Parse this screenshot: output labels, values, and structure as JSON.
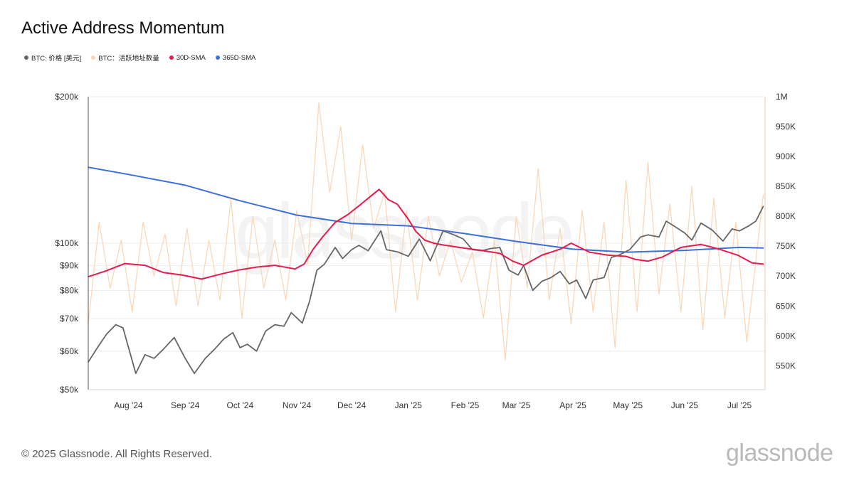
{
  "title": "Active Address Momentum",
  "legend": [
    {
      "label": "BTC: 价格 [美元]",
      "color": "#666666"
    },
    {
      "label": "BTC：活跃地址数量",
      "color": "#f9d6b6"
    },
    {
      "label": "30D-SMA",
      "color": "#e8194c"
    },
    {
      "label": "365D-SMA",
      "color": "#3d6fdc"
    }
  ],
  "footer": "© 2025 Glassnode. All Rights Reserved.",
  "brand": "glassnode",
  "watermark": "glassnode",
  "chart_data": {
    "type": "line",
    "x_range": [
      "2024-07-10",
      "2025-07-15"
    ],
    "x_ticks": [
      {
        "label": "Aug '24",
        "date": "2024-08-01"
      },
      {
        "label": "Sep '24",
        "date": "2024-09-01"
      },
      {
        "label": "Oct '24",
        "date": "2024-10-01"
      },
      {
        "label": "Nov '24",
        "date": "2024-11-01"
      },
      {
        "label": "Dec '24",
        "date": "2024-12-01"
      },
      {
        "label": "Jan '25",
        "date": "2025-01-01"
      },
      {
        "label": "Feb '25",
        "date": "2025-02-01"
      },
      {
        "label": "Mar '25",
        "date": "2025-03-01"
      },
      {
        "label": "Apr '25",
        "date": "2025-04-01"
      },
      {
        "label": "May '25",
        "date": "2025-05-01"
      },
      {
        "label": "Jun '25",
        "date": "2025-06-01"
      },
      {
        "label": "Jul '25",
        "date": "2025-07-01"
      }
    ],
    "y_left": {
      "scale": "log",
      "range": [
        50000,
        200000
      ],
      "ticks": [
        {
          "label": "$200k",
          "value": 200000
        },
        {
          "label": "$100k",
          "value": 100000
        },
        {
          "label": "$90k",
          "value": 90000
        },
        {
          "label": "$80k",
          "value": 80000
        },
        {
          "label": "$70k",
          "value": 70000
        },
        {
          "label": "$60k",
          "value": 60000
        },
        {
          "label": "$50k",
          "value": 50000
        }
      ]
    },
    "y_right": {
      "scale": "linear",
      "range": [
        510000,
        1000000
      ],
      "ticks": [
        {
          "label": "1M",
          "value": 1000000
        },
        {
          "label": "950K",
          "value": 950000
        },
        {
          "label": "900K",
          "value": 900000
        },
        {
          "label": "850K",
          "value": 850000
        },
        {
          "label": "800K",
          "value": 800000
        },
        {
          "label": "750K",
          "value": 750000
        },
        {
          "label": "700K",
          "value": 700000
        },
        {
          "label": "650K",
          "value": 650000
        },
        {
          "label": "600K",
          "value": 600000
        },
        {
          "label": "550K",
          "value": 550000
        }
      ]
    },
    "grid": true,
    "series": [
      {
        "name": "BTC: 价格 [美元]",
        "axis": "left",
        "color": "#666666",
        "x": [
          "2024-07-10",
          "2024-07-15",
          "2024-07-20",
          "2024-07-25",
          "2024-07-29",
          "2024-08-05",
          "2024-08-10",
          "2024-08-15",
          "2024-08-20",
          "2024-08-26",
          "2024-09-01",
          "2024-09-06",
          "2024-09-12",
          "2024-09-17",
          "2024-09-22",
          "2024-09-27",
          "2024-10-01",
          "2024-10-05",
          "2024-10-10",
          "2024-10-15",
          "2024-10-20",
          "2024-10-25",
          "2024-10-29",
          "2024-11-04",
          "2024-11-08",
          "2024-11-12",
          "2024-11-16",
          "2024-11-22",
          "2024-11-26",
          "2024-12-01",
          "2024-12-05",
          "2024-12-10",
          "2024-12-17",
          "2024-12-20",
          "2024-12-26",
          "2025-01-01",
          "2025-01-07",
          "2025-01-13",
          "2025-01-20",
          "2025-01-26",
          "2025-01-31",
          "2025-02-05",
          "2025-02-10",
          "2025-02-15",
          "2025-02-20",
          "2025-02-25",
          "2025-03-02",
          "2025-03-05",
          "2025-03-10",
          "2025-03-15",
          "2025-03-20",
          "2025-03-25",
          "2025-03-30",
          "2025-04-03",
          "2025-04-08",
          "2025-04-12",
          "2025-04-18",
          "2025-04-22",
          "2025-04-26",
          "2025-05-02",
          "2025-05-08",
          "2025-05-12",
          "2025-05-18",
          "2025-05-22",
          "2025-05-27",
          "2025-06-01",
          "2025-06-05",
          "2025-06-10",
          "2025-06-16",
          "2025-06-22",
          "2025-06-27",
          "2025-07-01",
          "2025-07-06",
          "2025-07-10",
          "2025-07-14"
        ],
        "y": [
          57000,
          61000,
          65000,
          68000,
          67000,
          54000,
          59000,
          58000,
          60500,
          64000,
          58000,
          54000,
          58000,
          60500,
          63500,
          65500,
          61000,
          62000,
          60000,
          66000,
          68000,
          67500,
          72000,
          68500,
          76000,
          88000,
          90500,
          98000,
          93000,
          97000,
          99000,
          96500,
          106000,
          97000,
          96000,
          94000,
          102000,
          92000,
          106000,
          104000,
          102000,
          97000,
          96500,
          97500,
          98000,
          88000,
          86000,
          90000,
          80000,
          83500,
          85000,
          87500,
          82500,
          84000,
          77000,
          84000,
          85000,
          93500,
          94500,
          97000,
          103000,
          104000,
          103000,
          111000,
          108000,
          105000,
          101500,
          110000,
          106500,
          101000,
          107000,
          106000,
          108500,
          111000,
          119000
        ]
      },
      {
        "name": "BTC：活跃地址数量",
        "axis": "right",
        "color": "#f9d6b6",
        "x": [
          "2024-07-10",
          "2024-07-16",
          "2024-07-22",
          "2024-07-28",
          "2024-08-03",
          "2024-08-09",
          "2024-08-15",
          "2024-08-21",
          "2024-08-27",
          "2024-09-02",
          "2024-09-08",
          "2024-09-14",
          "2024-09-20",
          "2024-09-26",
          "2024-10-02",
          "2024-10-08",
          "2024-10-14",
          "2024-10-20",
          "2024-10-26",
          "2024-11-01",
          "2024-11-07",
          "2024-11-13",
          "2024-11-19",
          "2024-11-25",
          "2024-12-01",
          "2024-12-07",
          "2024-12-13",
          "2024-12-19",
          "2024-12-25",
          "2024-12-31",
          "2025-01-06",
          "2025-01-12",
          "2025-01-18",
          "2025-01-24",
          "2025-01-30",
          "2025-02-05",
          "2025-02-11",
          "2025-02-17",
          "2025-02-23",
          "2025-03-01",
          "2025-03-07",
          "2025-03-13",
          "2025-03-19",
          "2025-03-25",
          "2025-03-31",
          "2025-04-06",
          "2025-04-12",
          "2025-04-18",
          "2025-04-24",
          "2025-04-30",
          "2025-05-06",
          "2025-05-12",
          "2025-05-18",
          "2025-05-24",
          "2025-05-30",
          "2025-06-05",
          "2025-06-11",
          "2025-06-17",
          "2025-06-23",
          "2025-06-29",
          "2025-07-05",
          "2025-07-14"
        ],
        "y": [
          620000,
          790000,
          680000,
          760000,
          640000,
          790000,
          700000,
          770000,
          650000,
          780000,
          650000,
          760000,
          660000,
          830000,
          630000,
          800000,
          680000,
          760000,
          660000,
          810000,
          720000,
          990000,
          840000,
          950000,
          760000,
          920000,
          780000,
          840000,
          640000,
          810000,
          660000,
          800000,
          700000,
          760000,
          690000,
          740000,
          630000,
          760000,
          560000,
          800000,
          680000,
          880000,
          660000,
          780000,
          620000,
          810000,
          640000,
          790000,
          580000,
          860000,
          640000,
          890000,
          670000,
          820000,
          640000,
          850000,
          610000,
          830000,
          630000,
          790000,
          590000,
          835000
        ]
      },
      {
        "name": "30D-SMA",
        "axis": "right",
        "color": "#e8194c",
        "x": [
          "2024-07-10",
          "2024-07-20",
          "2024-07-30",
          "2024-08-10",
          "2024-08-20",
          "2024-08-30",
          "2024-09-10",
          "2024-09-20",
          "2024-09-30",
          "2024-10-10",
          "2024-10-20",
          "2024-10-31",
          "2024-11-05",
          "2024-11-10",
          "2024-11-15",
          "2024-11-22",
          "2024-11-29",
          "2024-12-06",
          "2024-12-12",
          "2024-12-16",
          "2024-12-21",
          "2024-12-26",
          "2025-01-01",
          "2025-01-05",
          "2025-01-10",
          "2025-01-15",
          "2025-01-20",
          "2025-01-31",
          "2025-02-10",
          "2025-02-20",
          "2025-02-27",
          "2025-03-05",
          "2025-03-15",
          "2025-03-25",
          "2025-03-31",
          "2025-04-10",
          "2025-04-20",
          "2025-04-30",
          "2025-05-05",
          "2025-05-12",
          "2025-05-20",
          "2025-05-30",
          "2025-06-10",
          "2025-06-20",
          "2025-06-30",
          "2025-07-08",
          "2025-07-14"
        ],
        "y": [
          699000,
          709000,
          721000,
          718000,
          706000,
          702000,
          695000,
          703000,
          710000,
          715000,
          718000,
          712000,
          720000,
          745000,
          765000,
          790000,
          803000,
          820000,
          835000,
          845000,
          828000,
          820000,
          795000,
          775000,
          760000,
          755000,
          752000,
          747000,
          743000,
          738000,
          725000,
          718000,
          735000,
          745000,
          755000,
          740000,
          735000,
          733000,
          728000,
          725000,
          732000,
          748000,
          753000,
          745000,
          735000,
          722000,
          720000
        ]
      },
      {
        "name": "365D-SMA",
        "axis": "right",
        "color": "#3d6fdc",
        "x": [
          "2024-07-10",
          "2024-08-01",
          "2024-09-01",
          "2024-10-01",
          "2024-11-01",
          "2024-12-01",
          "2025-01-01",
          "2025-02-01",
          "2025-03-01",
          "2025-04-01",
          "2025-05-01",
          "2025-06-01",
          "2025-07-01",
          "2025-07-14"
        ],
        "y": [
          882000,
          870000,
          852000,
          826000,
          802000,
          788000,
          784000,
          771000,
          758000,
          745000,
          740000,
          743000,
          748000,
          747000
        ]
      }
    ]
  }
}
